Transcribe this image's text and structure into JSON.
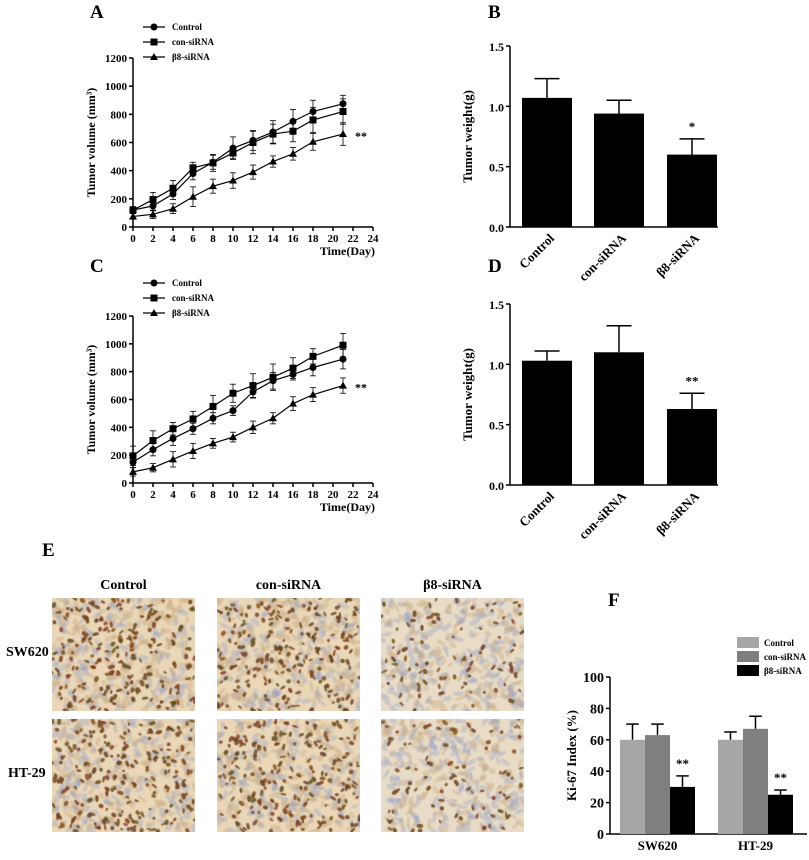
{
  "panel_labels": {
    "A": "A",
    "B": "B",
    "C": "C",
    "D": "D",
    "E": "E",
    "F": "F"
  },
  "colors": {
    "control_bar": "#a6a6a6",
    "con_sirna_bar": "#7f7f7f",
    "b8_sirna_bar": "#000000",
    "bars_bd": "#000000"
  },
  "micrographs": {
    "columns": [
      "Control",
      "con-siRNA",
      "β8-siRNA"
    ],
    "rows": [
      "SW620",
      "HT-29"
    ],
    "stain": "Ki-67 immunohistochemistry (brown nuclei)"
  },
  "chart_data": [
    {
      "id": "A",
      "type": "line",
      "xlabel": "Time(Day)",
      "ylabel": "Tumor volume (mm³)",
      "xlim": [
        0,
        24
      ],
      "ylim": [
        0,
        1200
      ],
      "xticks": [
        0,
        2,
        4,
        6,
        8,
        10,
        12,
        14,
        16,
        18,
        20,
        22,
        24
      ],
      "yticks": [
        0,
        200,
        400,
        600,
        800,
        1000,
        1200
      ],
      "legend": "top-left",
      "annotation": "**",
      "x": [
        0,
        2,
        4,
        6,
        8,
        10,
        12,
        14,
        16,
        18,
        21
      ],
      "series": [
        {
          "name": "Control",
          "marker": "circle",
          "values": [
            120,
            150,
            235,
            380,
            460,
            560,
            615,
            675,
            750,
            820,
            875
          ],
          "err": [
            20,
            35,
            40,
            45,
            50,
            80,
            70,
            80,
            85,
            80,
            60
          ]
        },
        {
          "name": "con-siRNA",
          "marker": "square",
          "values": [
            120,
            195,
            275,
            420,
            455,
            525,
            600,
            660,
            680,
            760,
            820
          ],
          "err": [
            25,
            50,
            55,
            40,
            60,
            40,
            80,
            70,
            75,
            90,
            90
          ]
        },
        {
          "name": "β8-siRNA",
          "marker": "triangle",
          "values": [
            75,
            90,
            130,
            215,
            290,
            330,
            390,
            465,
            520,
            605,
            660
          ],
          "err": [
            20,
            30,
            35,
            70,
            50,
            55,
            50,
            40,
            45,
            60,
            80
          ]
        }
      ]
    },
    {
      "id": "B",
      "type": "bar",
      "ylabel": "Tumor weight(g)",
      "ylim": [
        0,
        1.5
      ],
      "yticks": [
        "0.0",
        "0.5",
        "1.0",
        "1.5"
      ],
      "categories": [
        "Control",
        "con-siRNA",
        "β8-siRNA"
      ],
      "values": [
        1.07,
        0.94,
        0.6
      ],
      "err": [
        0.16,
        0.11,
        0.13
      ],
      "annotations": [
        "",
        "",
        "*"
      ]
    },
    {
      "id": "C",
      "type": "line",
      "xlabel": "Time(Day)",
      "ylabel": "Tumor volume (mm³)",
      "xlim": [
        0,
        24
      ],
      "ylim": [
        0,
        1200
      ],
      "xticks": [
        0,
        2,
        4,
        6,
        8,
        10,
        12,
        14,
        16,
        18,
        20,
        22,
        24
      ],
      "yticks": [
        0,
        200,
        400,
        600,
        800,
        1000,
        1200
      ],
      "legend": "top-left",
      "annotation": "**",
      "x": [
        0,
        2,
        4,
        6,
        8,
        10,
        12,
        14,
        16,
        18,
        21
      ],
      "series": [
        {
          "name": "Control",
          "marker": "circle",
          "values": [
            150,
            240,
            320,
            390,
            465,
            520,
            655,
            735,
            780,
            830,
            890
          ],
          "err": [
            40,
            45,
            50,
            40,
            40,
            35,
            45,
            60,
            40,
            60,
            70
          ]
        },
        {
          "name": "con-siRNA",
          "marker": "square",
          "values": [
            195,
            305,
            390,
            460,
            550,
            645,
            700,
            760,
            825,
            910,
            990
          ],
          "err": [
            70,
            70,
            45,
            55,
            80,
            65,
            85,
            95,
            75,
            55,
            85
          ]
        },
        {
          "name": "β8-siRNA",
          "marker": "triangle",
          "values": [
            80,
            110,
            170,
            230,
            285,
            330,
            400,
            465,
            570,
            635,
            700
          ],
          "err": [
            30,
            30,
            55,
            55,
            35,
            35,
            45,
            40,
            50,
            50,
            55
          ]
        }
      ]
    },
    {
      "id": "D",
      "type": "bar",
      "ylabel": "Tumor weight(g)",
      "ylim": [
        0,
        1.5
      ],
      "yticks": [
        "0.0",
        "0.5",
        "1.0",
        "1.5"
      ],
      "categories": [
        "Control",
        "con-siRNA",
        "β8-siRNA"
      ],
      "values": [
        1.03,
        1.1,
        0.63
      ],
      "err": [
        0.08,
        0.22,
        0.13
      ],
      "annotations": [
        "",
        "",
        "**"
      ]
    },
    {
      "id": "F",
      "type": "bar",
      "ylabel": "Ki-67 Index (%)",
      "ylim": [
        0,
        100
      ],
      "yticks": [
        0,
        20,
        40,
        60,
        80,
        100
      ],
      "legend": "top-right",
      "categories": [
        "SW620",
        "HT-29"
      ],
      "series": [
        {
          "name": "Control",
          "values": [
            60,
            60
          ],
          "err": [
            10,
            5
          ]
        },
        {
          "name": "con-siRNA",
          "values": [
            63,
            67
          ],
          "err": [
            7,
            8
          ]
        },
        {
          "name": "β8-siRNA",
          "values": [
            30,
            25
          ],
          "err": [
            7,
            3
          ],
          "annotations": [
            "**",
            "**"
          ]
        }
      ]
    }
  ]
}
